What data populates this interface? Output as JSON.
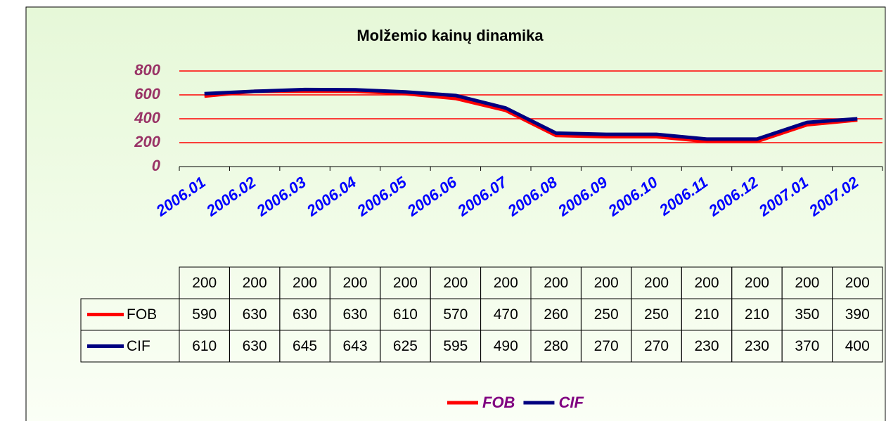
{
  "chart_data": {
    "type": "line",
    "title": "Molžemio kainų dinamika",
    "categories": [
      "2006.01",
      "2006.02",
      "2006.03",
      "2006.04",
      "2006.05",
      "2006.06",
      "2006.07",
      "2006.08",
      "2006.09",
      "2006.10",
      "2006.11",
      "2006.12",
      "2007.01",
      "2007.02"
    ],
    "series": [
      {
        "values": [
          200,
          200,
          200,
          200,
          200,
          200,
          200,
          200,
          200,
          200,
          200,
          200,
          200,
          200
        ]
      },
      {
        "name": "FOB",
        "color": "#ff0000",
        "values": [
          590,
          630,
          630,
          630,
          610,
          570,
          470,
          260,
          250,
          250,
          210,
          210,
          350,
          390
        ]
      },
      {
        "name": "CIF",
        "color": "#000080",
        "values": [
          610,
          630,
          645,
          643,
          625,
          595,
          490,
          280,
          270,
          270,
          230,
          230,
          370,
          400
        ]
      }
    ],
    "ylim": [
      0,
      800
    ],
    "yticks": [
      0,
      200,
      400,
      600,
      800
    ],
    "grid": true,
    "grid_color": "#ff0000",
    "legend": "bottom"
  }
}
